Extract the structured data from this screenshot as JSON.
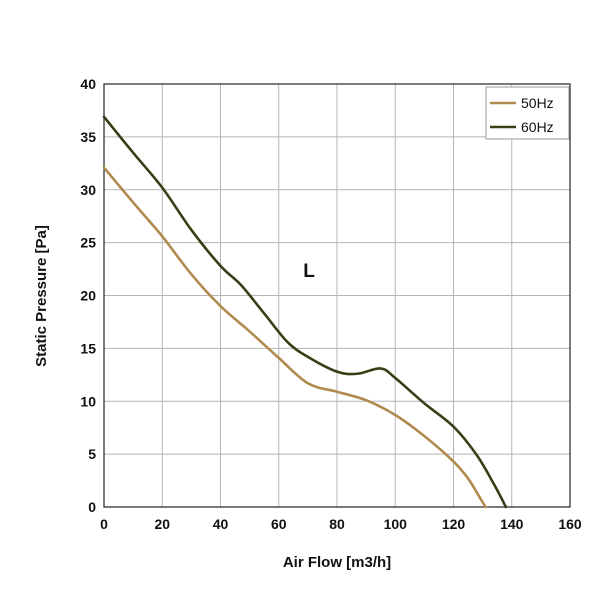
{
  "chart_data": {
    "type": "line",
    "xlabel": "Air Flow [m3/h]",
    "ylabel": "Static Pressure [Pa]",
    "xlim": [
      0,
      160
    ],
    "ylim": [
      0,
      40
    ],
    "xticks": [
      "0",
      "20",
      "40",
      "60",
      "80",
      "100",
      "120",
      "140",
      "160"
    ],
    "yticks": [
      "0",
      "5",
      "10",
      "15",
      "20",
      "25",
      "30",
      "35",
      "40"
    ],
    "grid": true,
    "legend_position": "top-right",
    "annotation": "L",
    "series": [
      {
        "name": "50Hz",
        "color": "#b08a4e",
        "x": [
          0,
          10,
          20,
          30,
          40,
          50,
          60,
          70,
          80,
          90,
          100,
          110,
          120,
          125,
          129,
          131
        ],
        "y": [
          32.1,
          28.8,
          25.6,
          22.0,
          19.0,
          16.6,
          14.1,
          11.7,
          10.9,
          10.1,
          8.7,
          6.7,
          4.3,
          2.7,
          0.9,
          0
        ]
      },
      {
        "name": "60Hz",
        "color": "#3b3d16",
        "x": [
          0,
          10,
          20,
          30,
          40,
          47,
          55,
          63,
          70,
          80,
          87,
          95,
          100,
          110,
          120,
          128,
          134,
          138
        ],
        "y": [
          36.9,
          33.5,
          30.2,
          26.2,
          22.8,
          21.0,
          18.3,
          15.6,
          14.2,
          12.8,
          12.6,
          13.1,
          12.2,
          9.8,
          7.6,
          4.9,
          2.1,
          0
        ]
      }
    ]
  }
}
